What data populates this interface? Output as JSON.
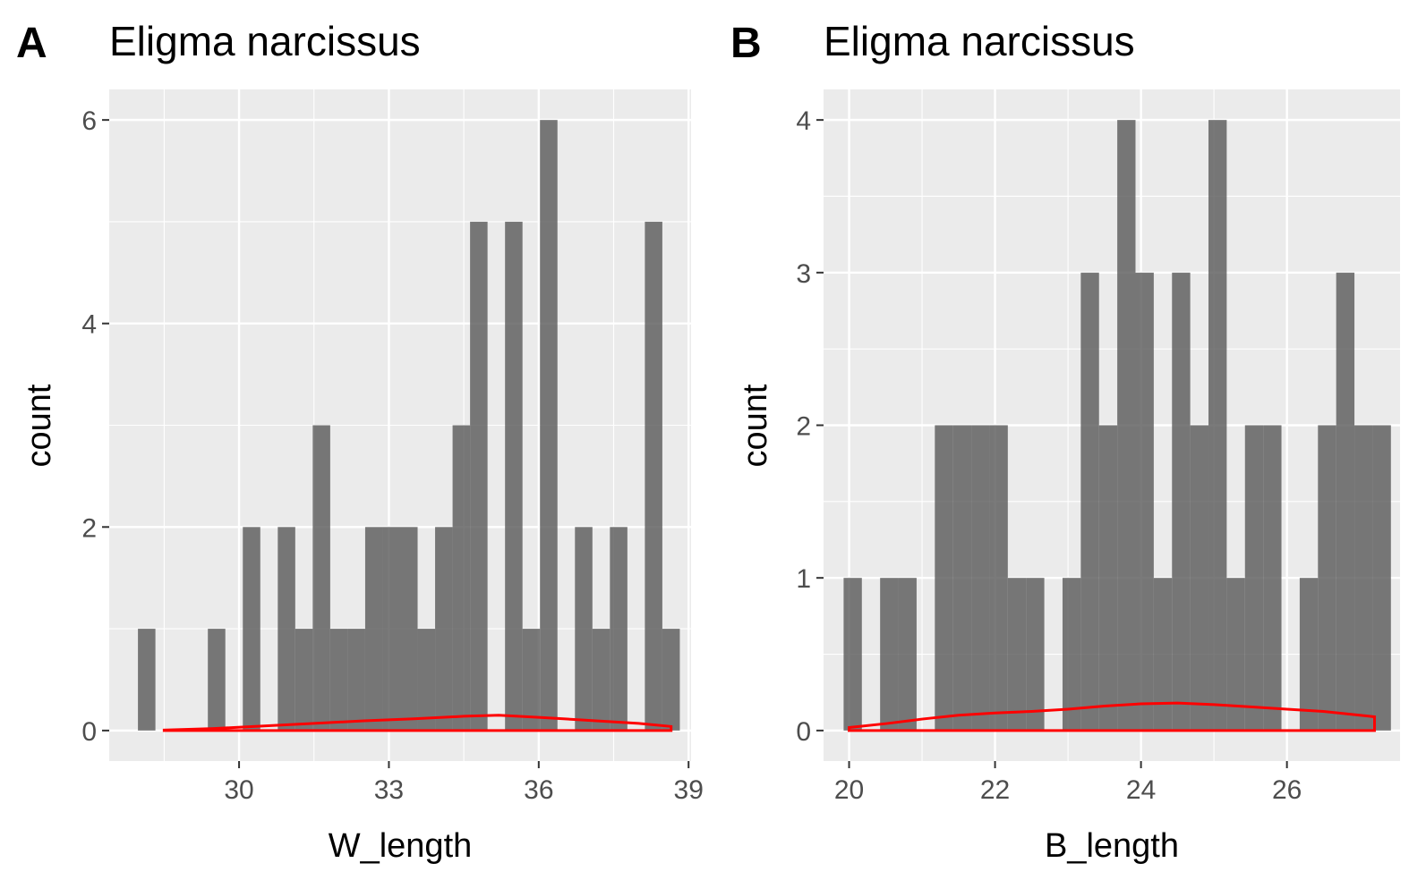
{
  "chart_data": [
    {
      "type": "bar",
      "tag": "A",
      "title": "Eligma narcissus",
      "xlabel": "W_length",
      "ylabel": "count",
      "xlim": [
        27.4,
        39.05
      ],
      "ylim": [
        -0.3,
        6.3
      ],
      "x_ticks": [
        30,
        33,
        36,
        39
      ],
      "y_ticks": [
        0,
        2,
        4,
        6
      ],
      "bin_width": 0.35,
      "bins": [
        {
          "x": 28.15,
          "count": 1
        },
        {
          "x": 29.55,
          "count": 1
        },
        {
          "x": 30.25,
          "count": 2
        },
        {
          "x": 30.95,
          "count": 2
        },
        {
          "x": 31.3,
          "count": 1
        },
        {
          "x": 31.65,
          "count": 3
        },
        {
          "x": 32.0,
          "count": 1
        },
        {
          "x": 32.35,
          "count": 1
        },
        {
          "x": 32.7,
          "count": 2
        },
        {
          "x": 33.05,
          "count": 2
        },
        {
          "x": 33.4,
          "count": 2
        },
        {
          "x": 33.75,
          "count": 1
        },
        {
          "x": 34.1,
          "count": 2
        },
        {
          "x": 34.45,
          "count": 3
        },
        {
          "x": 34.8,
          "count": 5
        },
        {
          "x": 35.5,
          "count": 5
        },
        {
          "x": 35.85,
          "count": 1
        },
        {
          "x": 36.2,
          "count": 6
        },
        {
          "x": 36.9,
          "count": 2
        },
        {
          "x": 37.25,
          "count": 1
        },
        {
          "x": 37.6,
          "count": 2
        },
        {
          "x": 38.3,
          "count": 5
        },
        {
          "x": 38.65,
          "count": 1
        }
      ],
      "density": {
        "x": [
          28.5,
          29.5,
          30.5,
          31.5,
          32.5,
          33.5,
          34.5,
          35.2,
          36.0,
          37.0,
          38.0,
          38.65
        ],
        "y": [
          0.005,
          0.02,
          0.045,
          0.07,
          0.095,
          0.115,
          0.14,
          0.15,
          0.13,
          0.1,
          0.07,
          0.04
        ]
      }
    },
    {
      "type": "bar",
      "tag": "B",
      "title": "Eligma narcissus",
      "xlabel": "B_length",
      "ylabel": "count",
      "xlim": [
        19.65,
        27.55
      ],
      "ylim": [
        -0.2,
        4.2
      ],
      "x_ticks": [
        20,
        22,
        24,
        26
      ],
      "y_ticks": [
        0,
        1,
        2,
        3,
        4
      ],
      "bin_width": 0.25,
      "bins": [
        {
          "x": 20.05,
          "count": 1
        },
        {
          "x": 20.55,
          "count": 1
        },
        {
          "x": 20.8,
          "count": 1
        },
        {
          "x": 21.3,
          "count": 2
        },
        {
          "x": 21.55,
          "count": 2
        },
        {
          "x": 21.8,
          "count": 2
        },
        {
          "x": 22.05,
          "count": 2
        },
        {
          "x": 22.3,
          "count": 1
        },
        {
          "x": 22.55,
          "count": 1
        },
        {
          "x": 23.05,
          "count": 1
        },
        {
          "x": 23.3,
          "count": 3
        },
        {
          "x": 23.55,
          "count": 2
        },
        {
          "x": 23.8,
          "count": 4
        },
        {
          "x": 24.05,
          "count": 3
        },
        {
          "x": 24.3,
          "count": 1
        },
        {
          "x": 24.55,
          "count": 3
        },
        {
          "x": 24.8,
          "count": 2
        },
        {
          "x": 25.05,
          "count": 4
        },
        {
          "x": 25.3,
          "count": 1
        },
        {
          "x": 25.55,
          "count": 2
        },
        {
          "x": 25.8,
          "count": 2
        },
        {
          "x": 26.3,
          "count": 1
        },
        {
          "x": 26.55,
          "count": 2
        },
        {
          "x": 26.8,
          "count": 3
        },
        {
          "x": 27.05,
          "count": 2
        },
        {
          "x": 27.3,
          "count": 2
        }
      ],
      "density": {
        "x": [
          20.0,
          20.5,
          21.0,
          21.5,
          22.0,
          22.5,
          23.0,
          23.5,
          24.0,
          24.5,
          25.0,
          25.5,
          26.0,
          26.5,
          27.0,
          27.2
        ],
        "y": [
          0.02,
          0.045,
          0.075,
          0.1,
          0.115,
          0.125,
          0.14,
          0.16,
          0.175,
          0.18,
          0.17,
          0.155,
          0.14,
          0.125,
          0.1,
          0.09
        ]
      }
    }
  ]
}
